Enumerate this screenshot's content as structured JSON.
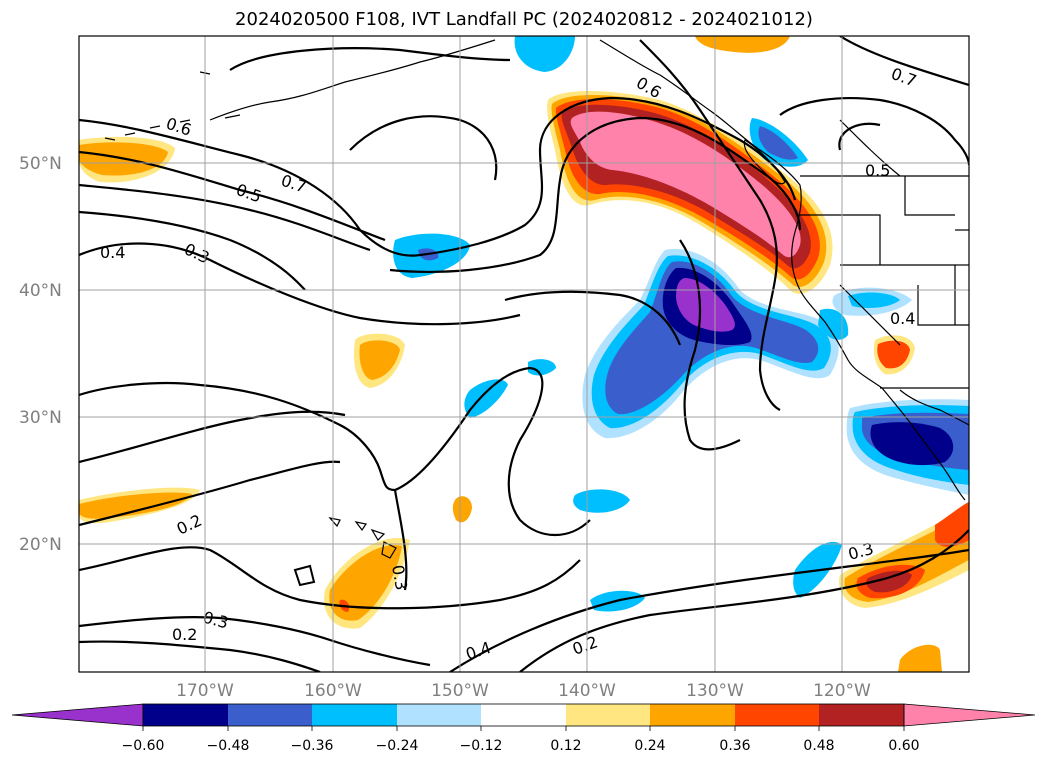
{
  "title": "2024020500 F108, IVT Landfall PC (2024020812 - 2024021012)",
  "map": {
    "lat_labels": [
      "50°N",
      "40°N",
      "30°N",
      "20°N"
    ],
    "lon_labels": [
      "170°W",
      "160°W",
      "150°W",
      "140°W",
      "130°W",
      "120°W"
    ],
    "contour_labels": [
      "0.6",
      "0.7",
      "0.5",
      "0.4",
      "0.3",
      "0.7",
      "0.5",
      "0.4",
      "0.2",
      "0.3",
      "0.2",
      "0.3",
      "0.4",
      "0.2",
      "0.3",
      "0.6"
    ]
  },
  "colorbar": {
    "ticks": [
      "−0.60",
      "−0.48",
      "−0.36",
      "−0.24",
      "−0.12",
      "0.12",
      "0.24",
      "0.36",
      "0.48",
      "0.60"
    ],
    "colors": [
      "#9932cc",
      "#00008b",
      "#3a5fcd",
      "#00bfff",
      "#b0e2ff",
      "#ffffff",
      "#ffe680",
      "#ffa500",
      "#ff4500",
      "#b22222",
      "#ff82ab"
    ]
  }
}
